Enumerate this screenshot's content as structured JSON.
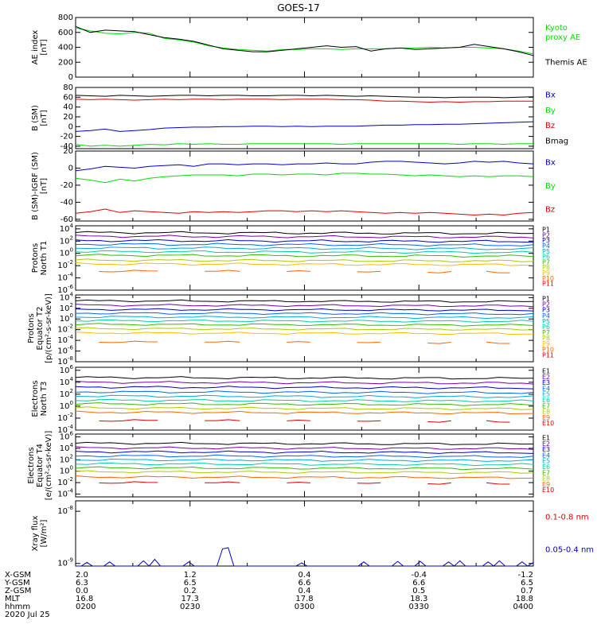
{
  "title": "GOES-17",
  "colors": {
    "black": "#000000",
    "green": "#00dd00",
    "red": "#dd0000",
    "blue": "#0000cc"
  },
  "chart_data": [
    {
      "type": "line",
      "ylabel": "AE index\n[nT]",
      "yticks": [
        "800",
        "600",
        "400",
        "200",
        "0"
      ],
      "ylim": [
        0,
        800
      ],
      "legend": [
        {
          "text": "Kyoto\nproxy AE",
          "color": "green"
        },
        {
          "text": "Themis AE",
          "color": "black"
        }
      ],
      "series": [
        {
          "name": "Kyoto proxy AE",
          "color": "green",
          "values": [
            660,
            620,
            590,
            580,
            600,
            590,
            520,
            500,
            470,
            420,
            390,
            370,
            360,
            350,
            370,
            370,
            380,
            380,
            370,
            380,
            380,
            380,
            390,
            390,
            400,
            390,
            400,
            400,
            390,
            380,
            350,
            310
          ]
        },
        {
          "name": "Themis AE",
          "color": "black",
          "values": [
            680,
            600,
            630,
            620,
            610,
            570,
            530,
            510,
            480,
            430,
            380,
            360,
            340,
            340,
            360,
            380,
            400,
            420,
            400,
            410,
            350,
            380,
            390,
            370,
            380,
            390,
            400,
            440,
            410,
            380,
            340,
            290
          ]
        }
      ]
    },
    {
      "type": "line",
      "ylabel": "B (SM)\n[nT]",
      "yticks": [
        "80",
        "60",
        "40",
        "20",
        "0",
        "-20",
        "-40"
      ],
      "ylim": [
        -45,
        80
      ],
      "legend": [
        {
          "text": "Bx",
          "color": "blue"
        },
        {
          "text": "By",
          "color": "green"
        },
        {
          "text": "Bz",
          "color": "red"
        },
        {
          "text": "Bmag",
          "color": "black"
        }
      ],
      "series": [
        {
          "name": "Bmag",
          "color": "black",
          "values": [
            64,
            63,
            62,
            64,
            63,
            62,
            63,
            64,
            64,
            63,
            64,
            64,
            63,
            63,
            64,
            64,
            63,
            64,
            63,
            62,
            63,
            62,
            61,
            60,
            60,
            59,
            60,
            60,
            60,
            59,
            60,
            61
          ]
        },
        {
          "name": "Bz",
          "color": "red",
          "values": [
            56,
            55,
            56,
            55,
            54,
            55,
            56,
            55,
            56,
            56,
            55,
            56,
            56,
            56,
            55,
            56,
            56,
            56,
            55,
            55,
            54,
            52,
            52,
            51,
            50,
            51,
            50,
            51,
            51,
            52,
            52,
            52
          ]
        },
        {
          "name": "Bx",
          "color": "blue",
          "values": [
            -10,
            -8,
            -5,
            -10,
            -8,
            -6,
            -3,
            -2,
            -1,
            -1,
            0,
            0,
            1,
            1,
            0,
            1,
            0,
            1,
            1,
            1,
            2,
            3,
            3,
            4,
            4,
            5,
            5,
            6,
            7,
            8,
            9,
            10
          ]
        },
        {
          "name": "By",
          "color": "green",
          "values": [
            -36,
            -40,
            -38,
            -40,
            -38,
            -36,
            -37,
            -35,
            -36,
            -35,
            -36,
            -36,
            -35,
            -35,
            -35,
            -35,
            -35,
            -35,
            -36,
            -35,
            -35,
            -35,
            -35,
            -35,
            -35,
            -35,
            -36,
            -35,
            -35,
            -36,
            -35,
            -35
          ]
        }
      ]
    },
    {
      "type": "line",
      "ylabel": "B (SM)-IGRF (SM)\n[nT]",
      "yticks": [
        "20",
        "0",
        "-20",
        "-40",
        "-60"
      ],
      "ylim": [
        -62,
        20
      ],
      "legend": [
        {
          "text": "Bx",
          "color": "blue"
        },
        {
          "text": "By",
          "color": "green"
        },
        {
          "text": "Bz",
          "color": "red"
        }
      ],
      "series": [
        {
          "name": "Bx",
          "color": "blue",
          "values": [
            -3,
            -1,
            2,
            1,
            0,
            2,
            3,
            4,
            2,
            5,
            5,
            4,
            5,
            5,
            4,
            5,
            5,
            6,
            5,
            5,
            7,
            8,
            8,
            7,
            6,
            5,
            6,
            8,
            7,
            8,
            6,
            5
          ]
        },
        {
          "name": "By",
          "color": "green",
          "values": [
            -12,
            -14,
            -17,
            -13,
            -15,
            -12,
            -10,
            -9,
            -8,
            -8,
            -8,
            -9,
            -7,
            -7,
            -8,
            -7,
            -7,
            -8,
            -6,
            -6,
            -7,
            -7,
            -8,
            -9,
            -8,
            -9,
            -10,
            -9,
            -10,
            -9,
            -9,
            -10
          ]
        },
        {
          "name": "Bz",
          "color": "red",
          "values": [
            -53,
            -51,
            -48,
            -52,
            -50,
            -51,
            -52,
            -53,
            -51,
            -52,
            -51,
            -52,
            -51,
            -50,
            -50,
            -51,
            -50,
            -51,
            -50,
            -51,
            -52,
            -53,
            -52,
            -53,
            -52,
            -53,
            -54,
            -55,
            -54,
            -55,
            -53,
            -52
          ]
        }
      ]
    },
    {
      "type": "line",
      "log": true,
      "ylabel": "Protons\nNorth T1",
      "yticks": [
        "10^4",
        "10^2",
        "10^0",
        "10^-2",
        "10^-4",
        "10^-6"
      ],
      "ylim": [
        -6,
        4.5
      ],
      "legend": [
        "P1",
        "P2",
        "P3",
        "P4",
        "P5",
        "P6",
        "P7",
        "P8",
        "P9",
        "P10",
        "P11"
      ],
      "legend_colors": [
        "#000000",
        "#7700aa",
        "#0000cc",
        "#0066ff",
        "#00aadd",
        "#00ccaa",
        "#33bb00",
        "#aacc00",
        "#ffbb00",
        "#ff6600",
        "#dd0000"
      ],
      "levels": [
        3.4,
        2.8,
        2.1,
        1.5,
        0.9,
        0.3,
        -0.3,
        -1.1,
        -1.7,
        -2.9
      ]
    },
    {
      "type": "line",
      "log": true,
      "ylabel": "Protons\nEquator T2\n[p/(cm²-s-sr-keV)]",
      "yticks": [
        "10^4",
        "10^2",
        "10^0",
        "10^-2",
        "10^-4",
        "10^-6",
        "10^-8"
      ],
      "ylim": [
        -8,
        4.5
      ],
      "legend": [
        "P1",
        "P2",
        "P3",
        "P4",
        "P5",
        "P6",
        "P7",
        "P8",
        "P9",
        "P10",
        "P11"
      ],
      "legend_colors": [
        "#000000",
        "#7700aa",
        "#0000cc",
        "#0066ff",
        "#00aadd",
        "#00ccaa",
        "#33bb00",
        "#aacc00",
        "#ffbb00",
        "#ff6600",
        "#dd0000"
      ],
      "levels": [
        3.4,
        2.6,
        1.8,
        1.1,
        0.4,
        -0.3,
        -1.0,
        -1.8,
        -2.6,
        -4.3
      ]
    },
    {
      "type": "line",
      "log": true,
      "ylabel": "Electrons\nNorth T3",
      "yticks": [
        "10^6",
        "10^4",
        "10^2",
        "10^0",
        "10^-2",
        "10^-4"
      ],
      "ylim": [
        -4,
        6.5
      ],
      "legend": [
        "E1",
        "E2",
        "E3",
        "E4",
        "E5",
        "E6",
        "E7",
        "E8",
        "E9",
        "E10"
      ],
      "legend_colors": [
        "#000000",
        "#7700aa",
        "#0000cc",
        "#0066ff",
        "#00aadd",
        "#00ccaa",
        "#33bb00",
        "#aacc00",
        "#ff6600",
        "#dd0000"
      ],
      "levels": [
        4.8,
        4.0,
        3.2,
        2.4,
        1.7,
        1.0,
        0.4,
        -0.3,
        -1.0,
        -2.4
      ]
    },
    {
      "type": "line",
      "log": true,
      "ylabel": "Electrons\nEquator T4\n[e/(cm²-s-sr-keV)]",
      "yticks": [
        "10^6",
        "10^4",
        "10^2",
        "10^0",
        "10^-2",
        "10^-4"
      ],
      "ylim": [
        -4.5,
        6.5
      ],
      "legend": [
        "E1",
        "E2",
        "E3",
        "E4",
        "E5",
        "E6",
        "E7",
        "E8",
        "E9",
        "E10"
      ],
      "legend_colors": [
        "#000000",
        "#7700aa",
        "#0000cc",
        "#0066ff",
        "#00aadd",
        "#00ccaa",
        "#33bb00",
        "#aacc00",
        "#ff6600",
        "#dd0000"
      ],
      "levels": [
        4.9,
        4.1,
        3.4,
        2.7,
        2.0,
        1.3,
        0.6,
        -0.1,
        -1.0,
        -2.0
      ]
    },
    {
      "type": "line",
      "log": true,
      "ylabel": "Xray flux\n[W/m²]",
      "yticks": [
        "10^-8",
        "10^-9"
      ],
      "ylim": [
        -9.05,
        -7.8
      ],
      "legend": [
        {
          "text": "0.1-0.8 nm",
          "color": "red"
        },
        {
          "text": "0.05-0.4 nm",
          "color": "blue"
        }
      ],
      "series": [
        {
          "name": "0.05-0.4 nm",
          "color": "blue",
          "values": [
            -9.05,
            -9.05,
            -8.98,
            -9.05,
            -9.05,
            -9.05,
            -8.97,
            -9.05,
            -9.05,
            -9.05,
            -9.05,
            -9.05,
            -8.95,
            -9.05,
            -8.92,
            -9.05,
            -9.05,
            -9.05,
            -9.05,
            -9.05,
            -8.97,
            -9.05,
            -9.05,
            -9.05,
            -9.05,
            -9.05,
            -8.72,
            -8.7,
            -9.05,
            -9.05,
            -9.05,
            -9.05,
            -9.05,
            -9.05,
            -9.05,
            -9.05,
            -9.05,
            -9.05,
            -9.05,
            -9.05,
            -8.99,
            -9.05,
            -9.05,
            -9.05,
            -9.05,
            -9.05,
            -9.05,
            -9.05,
            -9.05,
            -9.05,
            -9.05,
            -8.97,
            -9.05,
            -9.05,
            -9.05,
            -9.05,
            -9.05,
            -8.96,
            -9.05,
            -9.05,
            -9.05,
            -8.96,
            -9.05,
            -9.05,
            -9.05,
            -9.05,
            -8.97,
            -9.05,
            -8.95,
            -9.05,
            -9.05,
            -9.05,
            -9.05,
            -8.97,
            -9.05,
            -8.95,
            -9.05,
            -9.05,
            -9.05,
            -8.97,
            -9.05,
            -8.98
          ]
        }
      ]
    }
  ],
  "footer": {
    "row_labels": [
      "X-GSM",
      "Y-GSM",
      "Z-GSM",
      "MLT",
      "hhmm",
      "2020 Jul 25"
    ],
    "columns": [
      [
        "2.0",
        "6.3",
        "0.0",
        "16.8",
        "0200"
      ],
      [
        "1.2",
        "6.5",
        "0.2",
        "17.3",
        "0230"
      ],
      [
        "0.4",
        "6.6",
        "0.4",
        "17.8",
        "0300"
      ],
      [
        "-0.4",
        "6.6",
        "0.5",
        "18.3",
        "0330"
      ],
      [
        "-1.2",
        "6.5",
        "0.7",
        "18.8",
        "0400"
      ]
    ]
  }
}
